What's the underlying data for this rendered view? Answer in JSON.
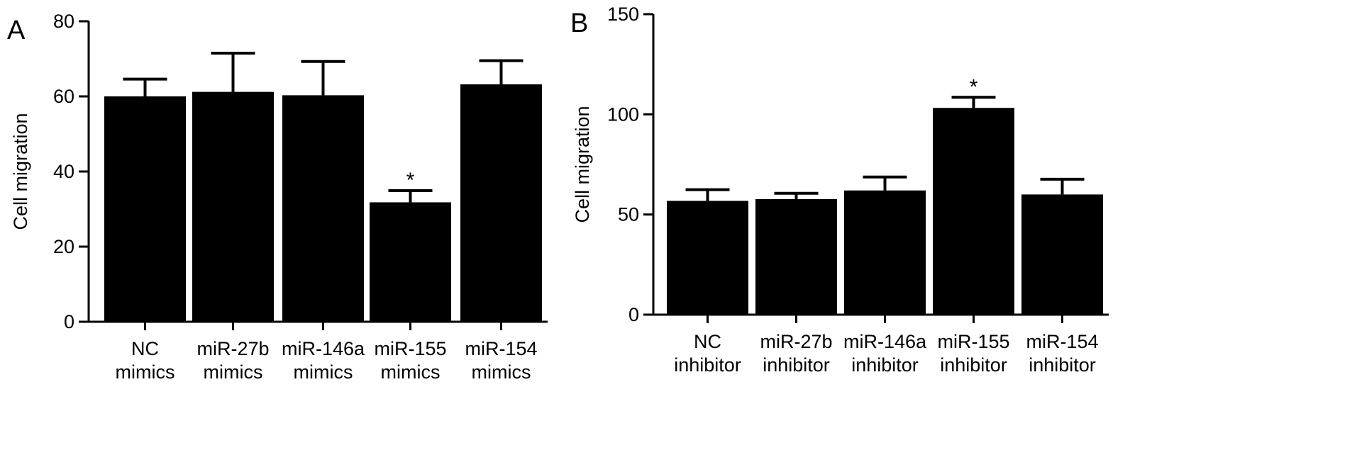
{
  "chart_data": [
    {
      "type": "bar",
      "panel_label": "A",
      "ylabel": "Cell migration",
      "ylim": [
        0,
        80
      ],
      "yticks": [
        0,
        20,
        40,
        60,
        80
      ],
      "categories": [
        [
          "NC",
          "mimics"
        ],
        [
          "miR-27b",
          "mimics"
        ],
        [
          "miR-146a",
          "mimics"
        ],
        [
          "miR-155",
          "mimics"
        ],
        [
          "miR-154",
          "mimics"
        ]
      ],
      "values": [
        60,
        61.2,
        60.3,
        31.8,
        63.2
      ],
      "errors": [
        4.6,
        10.3,
        9.0,
        3.1,
        6.3
      ],
      "significance": [
        "",
        "",
        "",
        "*",
        ""
      ],
      "bar_color": "#000000"
    },
    {
      "type": "bar",
      "panel_label": "B",
      "ylabel": "Cell migration",
      "ylim": [
        0,
        150
      ],
      "yticks": [
        0,
        50,
        100,
        150
      ],
      "categories": [
        [
          "NC",
          "inhibitor"
        ],
        [
          "miR-27b",
          "inhibitor"
        ],
        [
          "miR-146a",
          "inhibitor"
        ],
        [
          "miR-155",
          "inhibitor"
        ],
        [
          "miR-154",
          "inhibitor"
        ]
      ],
      "values": [
        56.8,
        57.7,
        62.0,
        103.2,
        60.0
      ],
      "errors": [
        5.6,
        2.9,
        6.7,
        5.3,
        7.6
      ],
      "significance": [
        "",
        "",
        "",
        "*",
        ""
      ],
      "bar_color": "#000000"
    }
  ]
}
